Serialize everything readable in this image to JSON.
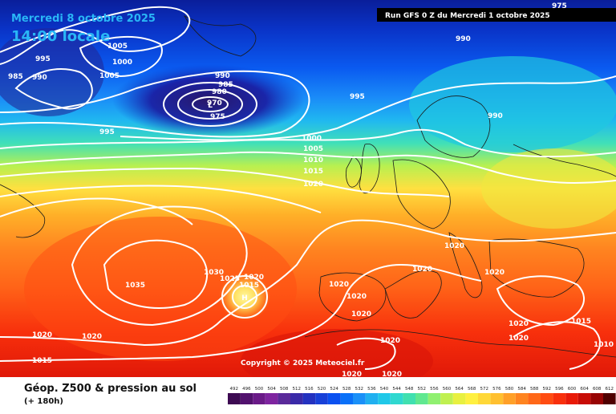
{
  "header": {
    "date": "Mercredi 8 octobre 2025",
    "time": "14:00 locale",
    "run": "Run GFS 0 Z du Mercredi 1 octobre 2025"
  },
  "copyright": "Copyright © 2025 Meteociel.fr",
  "legend": {
    "title": "Géop. Z500 & pression au sol",
    "subtitle": "(+ 180h)",
    "scale": [
      "492",
      "496",
      "500",
      "504",
      "508",
      "512",
      "516",
      "520",
      "524",
      "528",
      "532",
      "536",
      "540",
      "544",
      "548",
      "552",
      "556",
      "560",
      "564",
      "568",
      "572",
      "576",
      "580",
      "584",
      "588",
      "592",
      "596",
      "600",
      "604",
      "608",
      "612"
    ],
    "colors": [
      "#3d0a52",
      "#52126e",
      "#6a1a88",
      "#7e24a0",
      "#5a2a9a",
      "#3a2aa8",
      "#2432c0",
      "#1840d8",
      "#0a50f0",
      "#0a70f8",
      "#1a90f8",
      "#20b0f0",
      "#20c8e8",
      "#30d8d0",
      "#40e0b0",
      "#60e890",
      "#90f070",
      "#c0f050",
      "#e8f040",
      "#fff040",
      "#ffd838",
      "#ffc030",
      "#ffa028",
      "#ff8420",
      "#ff6818",
      "#ff4c12",
      "#f8300c",
      "#e81a08",
      "#c80c06",
      "#980404",
      "#500000"
    ]
  },
  "isobars": [
    "975",
    "985",
    "990",
    "995",
    "1005",
    "1000",
    "1005",
    "990",
    "985",
    "980",
    "970",
    "975",
    "990",
    "995",
    "995",
    "990",
    "1000",
    "1005",
    "1010",
    "1015",
    "1020",
    "1020",
    "1020",
    "1020",
    "1035",
    "1030",
    "1025",
    "1020",
    "1015",
    "1020",
    "1020",
    "1020",
    "1020",
    "1020",
    "1020",
    "1020",
    "1015",
    "1020",
    "1015",
    "1020",
    "1020",
    "1010"
  ],
  "icons": {
    "low": "low-pressure-center-icon",
    "high": "high-pressure-center-icon"
  }
}
